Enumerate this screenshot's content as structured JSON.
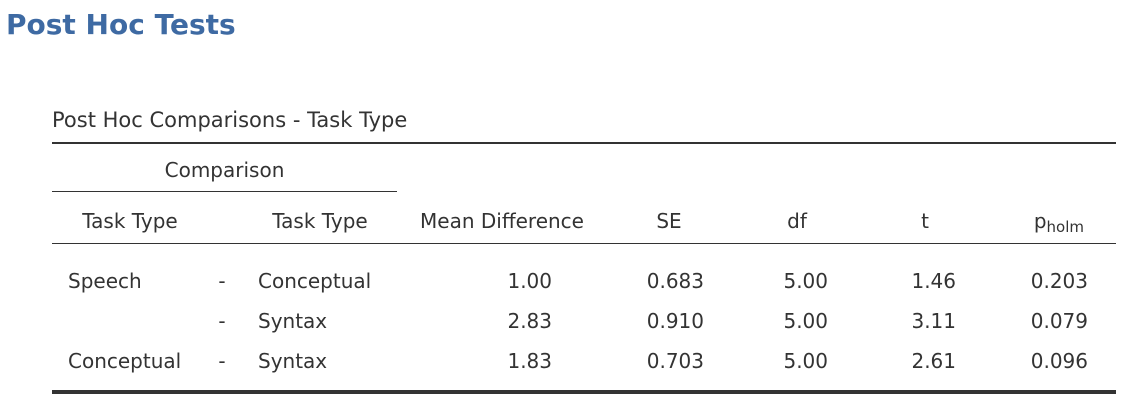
{
  "header": {
    "title": "Post Hoc Tests"
  },
  "table": {
    "title": "Post Hoc Comparisons - Task Type",
    "group_header": "Comparison",
    "columns": [
      "Task Type",
      "Task Type",
      "Mean Difference",
      "SE",
      "df",
      "t",
      {
        "main": "p",
        "sub": "holm"
      }
    ],
    "rows": [
      {
        "left": "Speech",
        "sep": "-",
        "right": "Conceptual",
        "values": [
          "1.00",
          "0.683",
          "5.00",
          "1.46",
          "0.203"
        ]
      },
      {
        "sep": "-",
        "right": "Syntax",
        "values": [
          "2.83",
          "0.910",
          "5.00",
          "3.11",
          "0.079"
        ]
      },
      {
        "left": "Conceptual",
        "sep": "-",
        "right": "Syntax",
        "values": [
          "1.83",
          "0.703",
          "5.00",
          "2.61",
          "0.096"
        ]
      }
    ]
  }
}
